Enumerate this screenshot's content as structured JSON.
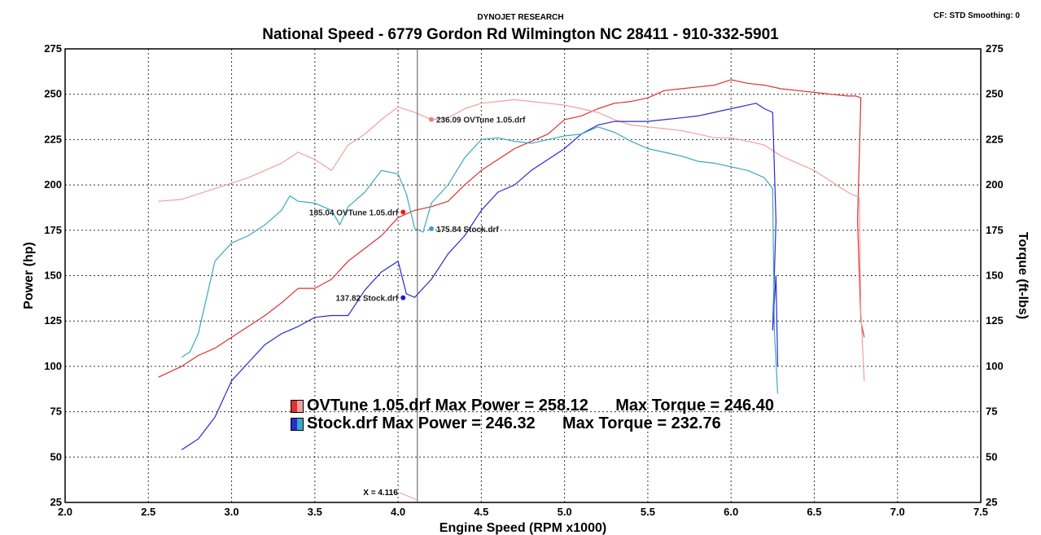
{
  "header": {
    "company": "DYNOJET RESEARCH",
    "title": "National Speed - 6779 Gordon Rd Wilmington NC 28411 - 910-332-5901",
    "settings": "CF: STD  Smoothing: 0"
  },
  "colors": {
    "ovtune_power": "#e03030",
    "ovtune_torque": "#f0a0a0",
    "stock_power": "#2a2acf",
    "stock_torque": "#3aa8c0",
    "grid": "#333333"
  },
  "legend": {
    "ovtune": "OVTune 1.05.drf Max Power = 258.12      Max Torque = 246.40",
    "stock": "Stock.drf Max Power = 246.32      Max Torque = 232.76"
  },
  "chart_data": {
    "type": "line",
    "xlabel": "Engine Speed (RPM x1000)",
    "ylabel": "Power (hp)",
    "y2label": "Torque (ft-lbs)",
    "xlim": [
      2.0,
      7.5
    ],
    "ylim": [
      25,
      275
    ],
    "x_ticks": [
      "2.0",
      "2.5",
      "3.0",
      "3.5",
      "4.0",
      "4.5",
      "5.0",
      "5.5",
      "6.0",
      "6.5",
      "7.0",
      "7.5"
    ],
    "y_ticks": [
      "275",
      "250",
      "225",
      "200",
      "175",
      "150",
      "125",
      "100",
      "75",
      "50",
      "25"
    ],
    "grid": true,
    "cursor": {
      "x": 4.116,
      "label": "X = 4.116"
    },
    "series": [
      {
        "name": "OVTune 1.05.drf",
        "kind": "power",
        "color": "#e03030",
        "x": [
          2.56,
          2.7,
          2.8,
          2.9,
          3.0,
          3.1,
          3.2,
          3.3,
          3.4,
          3.5,
          3.6,
          3.7,
          3.8,
          3.9,
          4.0,
          4.1,
          4.2,
          4.3,
          4.4,
          4.5,
          4.6,
          4.7,
          4.8,
          4.9,
          5.0,
          5.1,
          5.2,
          5.3,
          5.4,
          5.5,
          5.6,
          5.7,
          5.8,
          5.9,
          6.0,
          6.1,
          6.2,
          6.3,
          6.4,
          6.5,
          6.6,
          6.7,
          6.75,
          6.78,
          6.76,
          6.78,
          6.8
        ],
        "y": [
          94,
          100,
          106,
          110,
          116,
          122,
          128,
          135,
          143,
          143,
          148,
          158,
          165,
          172,
          182,
          186,
          188,
          191,
          200,
          208,
          214,
          220,
          224,
          228,
          236,
          238,
          242,
          245,
          246,
          248,
          252,
          253,
          254,
          255,
          258,
          256,
          255,
          253,
          252,
          251,
          250,
          249,
          249,
          248,
          180,
          125,
          116
        ]
      },
      {
        "name": "OVTune 1.05.drf",
        "kind": "torque",
        "color": "#f0a0a0",
        "x": [
          2.56,
          2.7,
          2.8,
          2.9,
          3.0,
          3.1,
          3.2,
          3.3,
          3.4,
          3.5,
          3.6,
          3.7,
          3.8,
          3.9,
          4.0,
          4.1,
          4.2,
          4.3,
          4.4,
          4.5,
          4.6,
          4.7,
          4.8,
          4.9,
          5.0,
          5.1,
          5.2,
          5.3,
          5.4,
          5.5,
          5.6,
          5.7,
          5.8,
          5.9,
          6.0,
          6.1,
          6.2,
          6.3,
          6.4,
          6.5,
          6.6,
          6.7,
          6.77,
          6.78,
          6.8
        ],
        "y": [
          191,
          192,
          195,
          198,
          201,
          204,
          208,
          212,
          218,
          214,
          208,
          222,
          228,
          236,
          243,
          240,
          236,
          237,
          242,
          245,
          246,
          247,
          246,
          245,
          244,
          242,
          240,
          236,
          233,
          232,
          231,
          230,
          228,
          226,
          226,
          224,
          222,
          216,
          212,
          208,
          202,
          196,
          193,
          130,
          92
        ]
      },
      {
        "name": "Stock.drf",
        "kind": "power",
        "color": "#2a2acf",
        "x": [
          2.7,
          2.8,
          2.9,
          3.0,
          3.1,
          3.2,
          3.3,
          3.4,
          3.5,
          3.6,
          3.7,
          3.8,
          3.9,
          4.0,
          4.05,
          4.1,
          4.2,
          4.3,
          4.4,
          4.5,
          4.6,
          4.7,
          4.8,
          4.9,
          5.0,
          5.1,
          5.2,
          5.3,
          5.4,
          5.5,
          5.6,
          5.7,
          5.8,
          5.9,
          6.0,
          6.1,
          6.15,
          6.2,
          6.25,
          6.27,
          6.25,
          6.27,
          6.28
        ],
        "y": [
          54,
          60,
          72,
          92,
          102,
          112,
          118,
          122,
          127,
          128,
          128,
          142,
          152,
          158,
          140,
          138,
          148,
          162,
          172,
          186,
          196,
          200,
          208,
          214,
          220,
          228,
          233,
          235,
          235,
          235,
          236,
          237,
          238,
          240,
          242,
          244,
          245,
          242,
          240,
          180,
          120,
          150,
          100
        ]
      },
      {
        "name": "Stock.drf",
        "kind": "torque",
        "color": "#3aa8c0",
        "x": [
          2.7,
          2.75,
          2.8,
          2.9,
          3.0,
          3.1,
          3.2,
          3.3,
          3.35,
          3.4,
          3.5,
          3.6,
          3.65,
          3.7,
          3.8,
          3.9,
          4.0,
          4.05,
          4.1,
          4.15,
          4.2,
          4.3,
          4.4,
          4.5,
          4.6,
          4.7,
          4.8,
          4.9,
          5.0,
          5.1,
          5.2,
          5.3,
          5.4,
          5.5,
          5.6,
          5.7,
          5.8,
          5.9,
          6.0,
          6.1,
          6.2,
          6.25,
          6.26,
          6.28
        ],
        "y": [
          105,
          108,
          118,
          158,
          168,
          172,
          178,
          186,
          194,
          191,
          190,
          186,
          178,
          188,
          196,
          208,
          206,
          195,
          176,
          174,
          190,
          200,
          215,
          225,
          226,
          224,
          223,
          225,
          227,
          228,
          232,
          229,
          224,
          220,
          218,
          216,
          213,
          212,
          210,
          208,
          204,
          198,
          120,
          85
        ]
      }
    ],
    "annotations": [
      {
        "text": "236.09 OVTune 1.05.drf",
        "x": 4.2,
        "y": 236.09,
        "color": "#f08080",
        "side": "right"
      },
      {
        "text": "185.04 OVTune 1.05.drf",
        "x": 4.03,
        "y": 185.04,
        "color": "#e02020",
        "side": "left"
      },
      {
        "text": "175.84 Stock.drf",
        "x": 4.2,
        "y": 175.84,
        "color": "#3a9ed0",
        "side": "right"
      },
      {
        "text": "137.82 Stock.drf",
        "x": 4.03,
        "y": 137.82,
        "color": "#1a1ad0",
        "side": "left"
      }
    ]
  }
}
